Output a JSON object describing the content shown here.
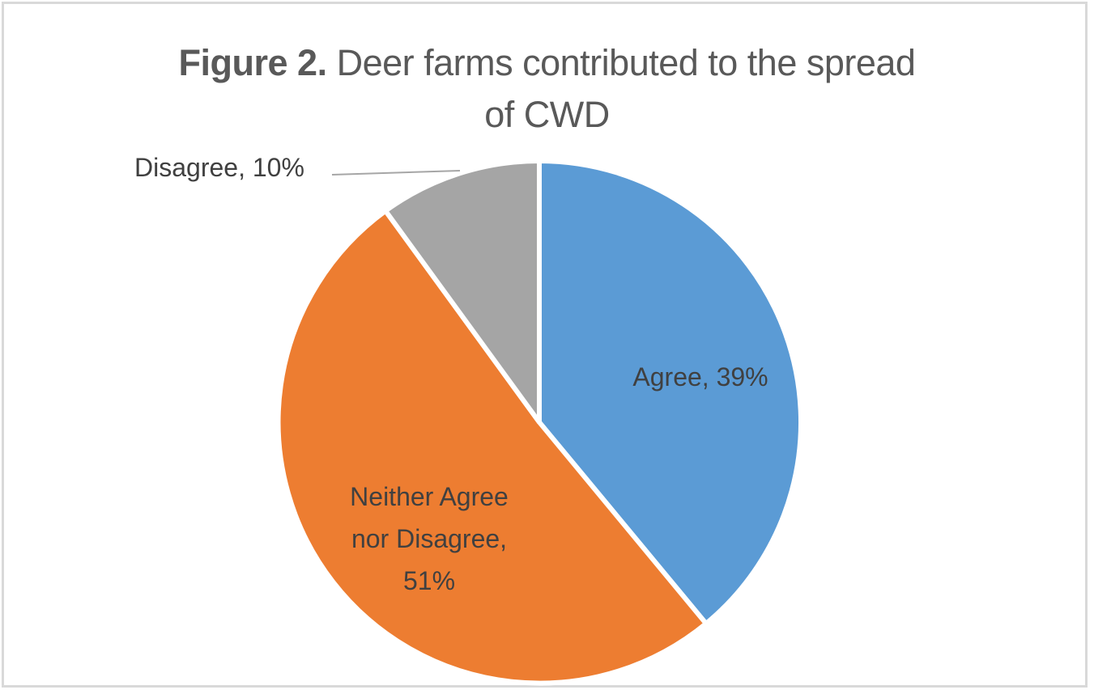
{
  "chart_data": {
    "type": "pie",
    "title": "Figure 2. Deer farms contributed to the spread of CWD",
    "title_bold_part": "Figure 2.",
    "title_line1_rest": " Deer farms contributed to the spread",
    "title_line2": "of CWD",
    "categories": [
      "Agree",
      "Neither Agree nor Disagree",
      "Disagree"
    ],
    "values": [
      39,
      51,
      10
    ],
    "unit": "%",
    "colors": [
      "#5b9bd5",
      "#ed7d31",
      "#a5a5a5"
    ],
    "data_labels": [
      "Agree, 39%",
      "Neither Agree nor Disagree, 51%",
      "Disagree, 10%"
    ],
    "legend": "none",
    "start_angle_deg": 0,
    "direction": "clockwise"
  },
  "labels": {
    "agree": "Agree, 39%",
    "neither_line1": "Neither Agree",
    "neither_line2": "nor Disagree,",
    "neither_line3": "51%",
    "disagree": "Disagree, 10%"
  }
}
